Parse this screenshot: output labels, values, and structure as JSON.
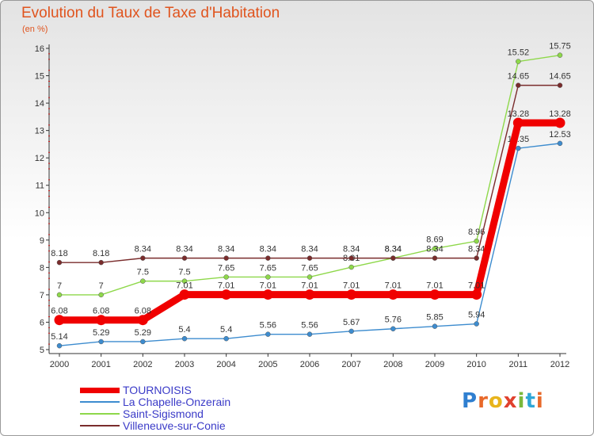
{
  "header": {
    "title": "Evolution du Taux de Taxe d'Habitation",
    "unit": "(en %)"
  },
  "brand": {
    "text": "Proxiti",
    "letter_colors": [
      "#2f7fd0",
      "#e8692a",
      "#e8b41c",
      "#e0412e",
      "#7ab83c",
      "#2fa6d6",
      "#e8692a"
    ]
  },
  "chart_data": {
    "type": "line",
    "x": [
      "2000",
      "2001",
      "2002",
      "2003",
      "2004",
      "2005",
      "2006",
      "2007",
      "2008",
      "2009",
      "2010",
      "2011",
      "2012"
    ],
    "ylim": [
      5,
      16
    ],
    "yticks": [
      "5",
      "6",
      "7",
      "8",
      "9",
      "10",
      "11",
      "12",
      "13",
      "14",
      "15",
      "16"
    ],
    "grid": false,
    "legend_position": "bottom-left",
    "series": [
      {
        "name": "TOURNOISIS",
        "color": "#f00000",
        "thick": true,
        "values": [
          6.08,
          6.08,
          6.08,
          7.01,
          7.01,
          7.01,
          7.01,
          7.01,
          7.01,
          7.01,
          7.01,
          13.28,
          13.28
        ],
        "labels": [
          "6.08",
          "6.08",
          "6.08",
          "7.01",
          "7.01",
          "7.01",
          "7.01",
          "7.01",
          "7.01",
          "7.01",
          "7.01",
          "13.28",
          "13.28"
        ]
      },
      {
        "name": "La Chapelle-Onzerain",
        "color": "#3d8ccf",
        "values": [
          5.14,
          5.29,
          5.29,
          5.4,
          5.4,
          5.56,
          5.56,
          5.67,
          5.76,
          5.85,
          5.94,
          12.35,
          12.53
        ],
        "labels": [
          "5.14",
          "5.29",
          "5.29",
          "5.4",
          "5.4",
          "5.56",
          "5.56",
          "5.67",
          "5.76",
          "5.85",
          "5.94",
          "12.35",
          "12.53"
        ]
      },
      {
        "name": "Saint-Sigismond",
        "color": "#8ed84a",
        "values": [
          7,
          7,
          7.5,
          7.5,
          7.65,
          7.65,
          7.65,
          8.01,
          8.34,
          8.69,
          8.96,
          15.52,
          15.75
        ],
        "labels": [
          "7",
          "7",
          "7.5",
          "7.5",
          "7.65",
          "7.65",
          "7.65",
          "8.01",
          "8.34",
          "8.69",
          "8.96",
          "15.52",
          "15.75"
        ]
      },
      {
        "name": "Villeneuve-sur-Conie",
        "color": "#7a2c2c",
        "values": [
          8.18,
          8.18,
          8.34,
          8.34,
          8.34,
          8.34,
          8.34,
          8.34,
          8.34,
          8.34,
          8.34,
          14.65,
          14.65
        ],
        "labels": [
          "8.18",
          "8.18",
          "8.34",
          "8.34",
          "8.34",
          "8.34",
          "8.34",
          "8.34",
          "8.34",
          "8.34",
          "8.34",
          "14.65",
          "14.65"
        ]
      }
    ]
  }
}
